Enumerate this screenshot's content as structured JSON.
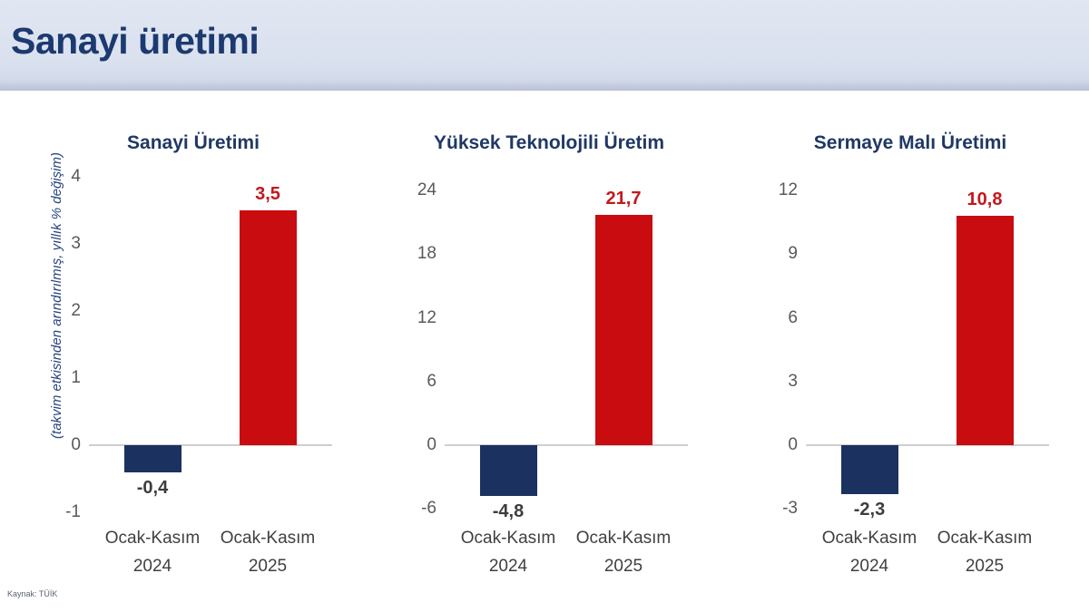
{
  "header": {
    "title": "Sanayi üretimi"
  },
  "y_axis_note": "(takvim etkisinden arındırılmış, yıllık % değişim)",
  "source": "Kaynak: TÜİK",
  "colors": {
    "header_background": "#dae1ee",
    "header_title": "#1c3a70",
    "chart_title": "#1f3864",
    "positive_bar": "#c80c10",
    "negative_bar": "#1b3160",
    "positive_value_label": "#c3181c",
    "negative_value_label": "#3d3d3d",
    "tick_label": "#595959",
    "axis_line": "#cfcfcf"
  },
  "chart_data": [
    {
      "type": "bar",
      "title": "Sanayi Üretimi",
      "categories": [
        [
          "Ocak-Kasım",
          "2024"
        ],
        [
          "Ocak-Kasım",
          "2025"
        ]
      ],
      "values": [
        -0.4,
        3.5
      ],
      "value_labels": [
        "-0,4",
        "3,5"
      ],
      "yticks": [
        4,
        3,
        2,
        1,
        0,
        -1
      ],
      "ylim": [
        -1,
        4
      ],
      "grid": false,
      "legend": "none"
    },
    {
      "type": "bar",
      "title": "Yüksek Teknolojili Üretim",
      "categories": [
        [
          "Ocak-Kasım",
          "2024"
        ],
        [
          "Ocak-Kasım",
          "2025"
        ]
      ],
      "values": [
        -4.8,
        21.7
      ],
      "value_labels": [
        "-4,8",
        "21,7"
      ],
      "yticks": [
        24,
        18,
        12,
        6,
        0,
        -6
      ],
      "ylim": [
        -6,
        24
      ],
      "grid": false,
      "legend": "none"
    },
    {
      "type": "bar",
      "title": "Sermaye Malı Üretimi",
      "categories": [
        [
          "Ocak-Kasım",
          "2024"
        ],
        [
          "Ocak-Kasım",
          "2025"
        ]
      ],
      "values": [
        -2.3,
        10.8
      ],
      "value_labels": [
        "-2,3",
        "10,8"
      ],
      "yticks": [
        12,
        9,
        6,
        3,
        0,
        -3
      ],
      "ylim": [
        -3,
        12
      ],
      "grid": false,
      "legend": "none"
    }
  ]
}
